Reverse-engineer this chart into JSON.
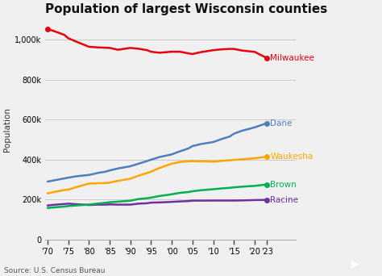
{
  "title": "Population of largest Wisconsin counties",
  "ylabel": "Population",
  "source": "Source: U.S. Census Bureau",
  "background_color": "#f0f0f0",
  "years": [
    1970,
    1972,
    1974,
    1975,
    1977,
    1980,
    1982,
    1984,
    1985,
    1987,
    1990,
    1992,
    1994,
    1995,
    1997,
    2000,
    2002,
    2004,
    2005,
    2007,
    2010,
    2012,
    2014,
    2015,
    2017,
    2020,
    2023
  ],
  "series": {
    "Milwaukee": {
      "color": "#e8000d",
      "data": [
        1054249,
        1040000,
        1025000,
        1007850,
        990000,
        964988,
        962000,
        960000,
        959275,
        950000,
        959275,
        955000,
        948000,
        940164,
        935000,
        940164,
        940000,
        932000,
        928567,
        938000,
        947735,
        952000,
        954209,
        954209,
        946000,
        939489,
        908083
      ]
    },
    "Dane": {
      "color": "#4e7fbf",
      "data": [
        290272,
        298000,
        306000,
        310000,
        317000,
        323545,
        333000,
        340000,
        346000,
        356000,
        367085,
        380000,
        393000,
        400000,
        413000,
        426526,
        442000,
        456000,
        468000,
        478000,
        488073,
        503000,
        516000,
        529843,
        545000,
        561504,
        583024
      ]
    },
    "Waukesha": {
      "color": "#ffa500",
      "data": [
        231335,
        240000,
        248000,
        250000,
        263000,
        280203,
        282000,
        283000,
        285000,
        294000,
        304715,
        320000,
        333000,
        340000,
        358000,
        380000,
        388000,
        392000,
        393000,
        392000,
        389891,
        394000,
        397000,
        398879,
        402000,
        406978,
        415000
      ]
    },
    "Brown": {
      "color": "#00b050",
      "data": [
        158244,
        162000,
        165000,
        168000,
        171000,
        175280,
        180000,
        184000,
        187000,
        190000,
        194594,
        203000,
        207000,
        210000,
        218000,
        226778,
        234000,
        238000,
        242000,
        247000,
        252079,
        256000,
        259000,
        261610,
        265000,
        268740,
        276000
      ]
    },
    "Racine": {
      "color": "#7030a0",
      "data": [
        170838,
        175000,
        178000,
        180000,
        177000,
        173132,
        175000,
        175000,
        176000,
        175000,
        175034,
        180000,
        182000,
        185000,
        186000,
        188831,
        191000,
        193000,
        195000,
        195000,
        195408,
        195400,
        195400,
        195398,
        196000,
        197831,
        199000
      ]
    }
  },
  "ylim": [
    0,
    1100000
  ],
  "yticks": [
    0,
    200000,
    400000,
    600000,
    800000,
    1000000
  ],
  "ytick_labels": [
    "0",
    "200k",
    "400k",
    "600k",
    "800k",
    "1,000k"
  ],
  "xtick_years": [
    1970,
    1975,
    1980,
    1985,
    1990,
    1995,
    2000,
    2005,
    2010,
    2015,
    2020,
    2023
  ],
  "xtick_labels": [
    "'70",
    "'75",
    "'80",
    "'85",
    "'90",
    "'95",
    "'00",
    "'05",
    "'10",
    "'15",
    "'20",
    "'23"
  ],
  "grid_color": "#c8c8c8",
  "title_fontsize": 11,
  "label_fontsize": 7.5,
  "tick_fontsize": 7,
  "source_fontsize": 6.5,
  "line_width": 1.8
}
